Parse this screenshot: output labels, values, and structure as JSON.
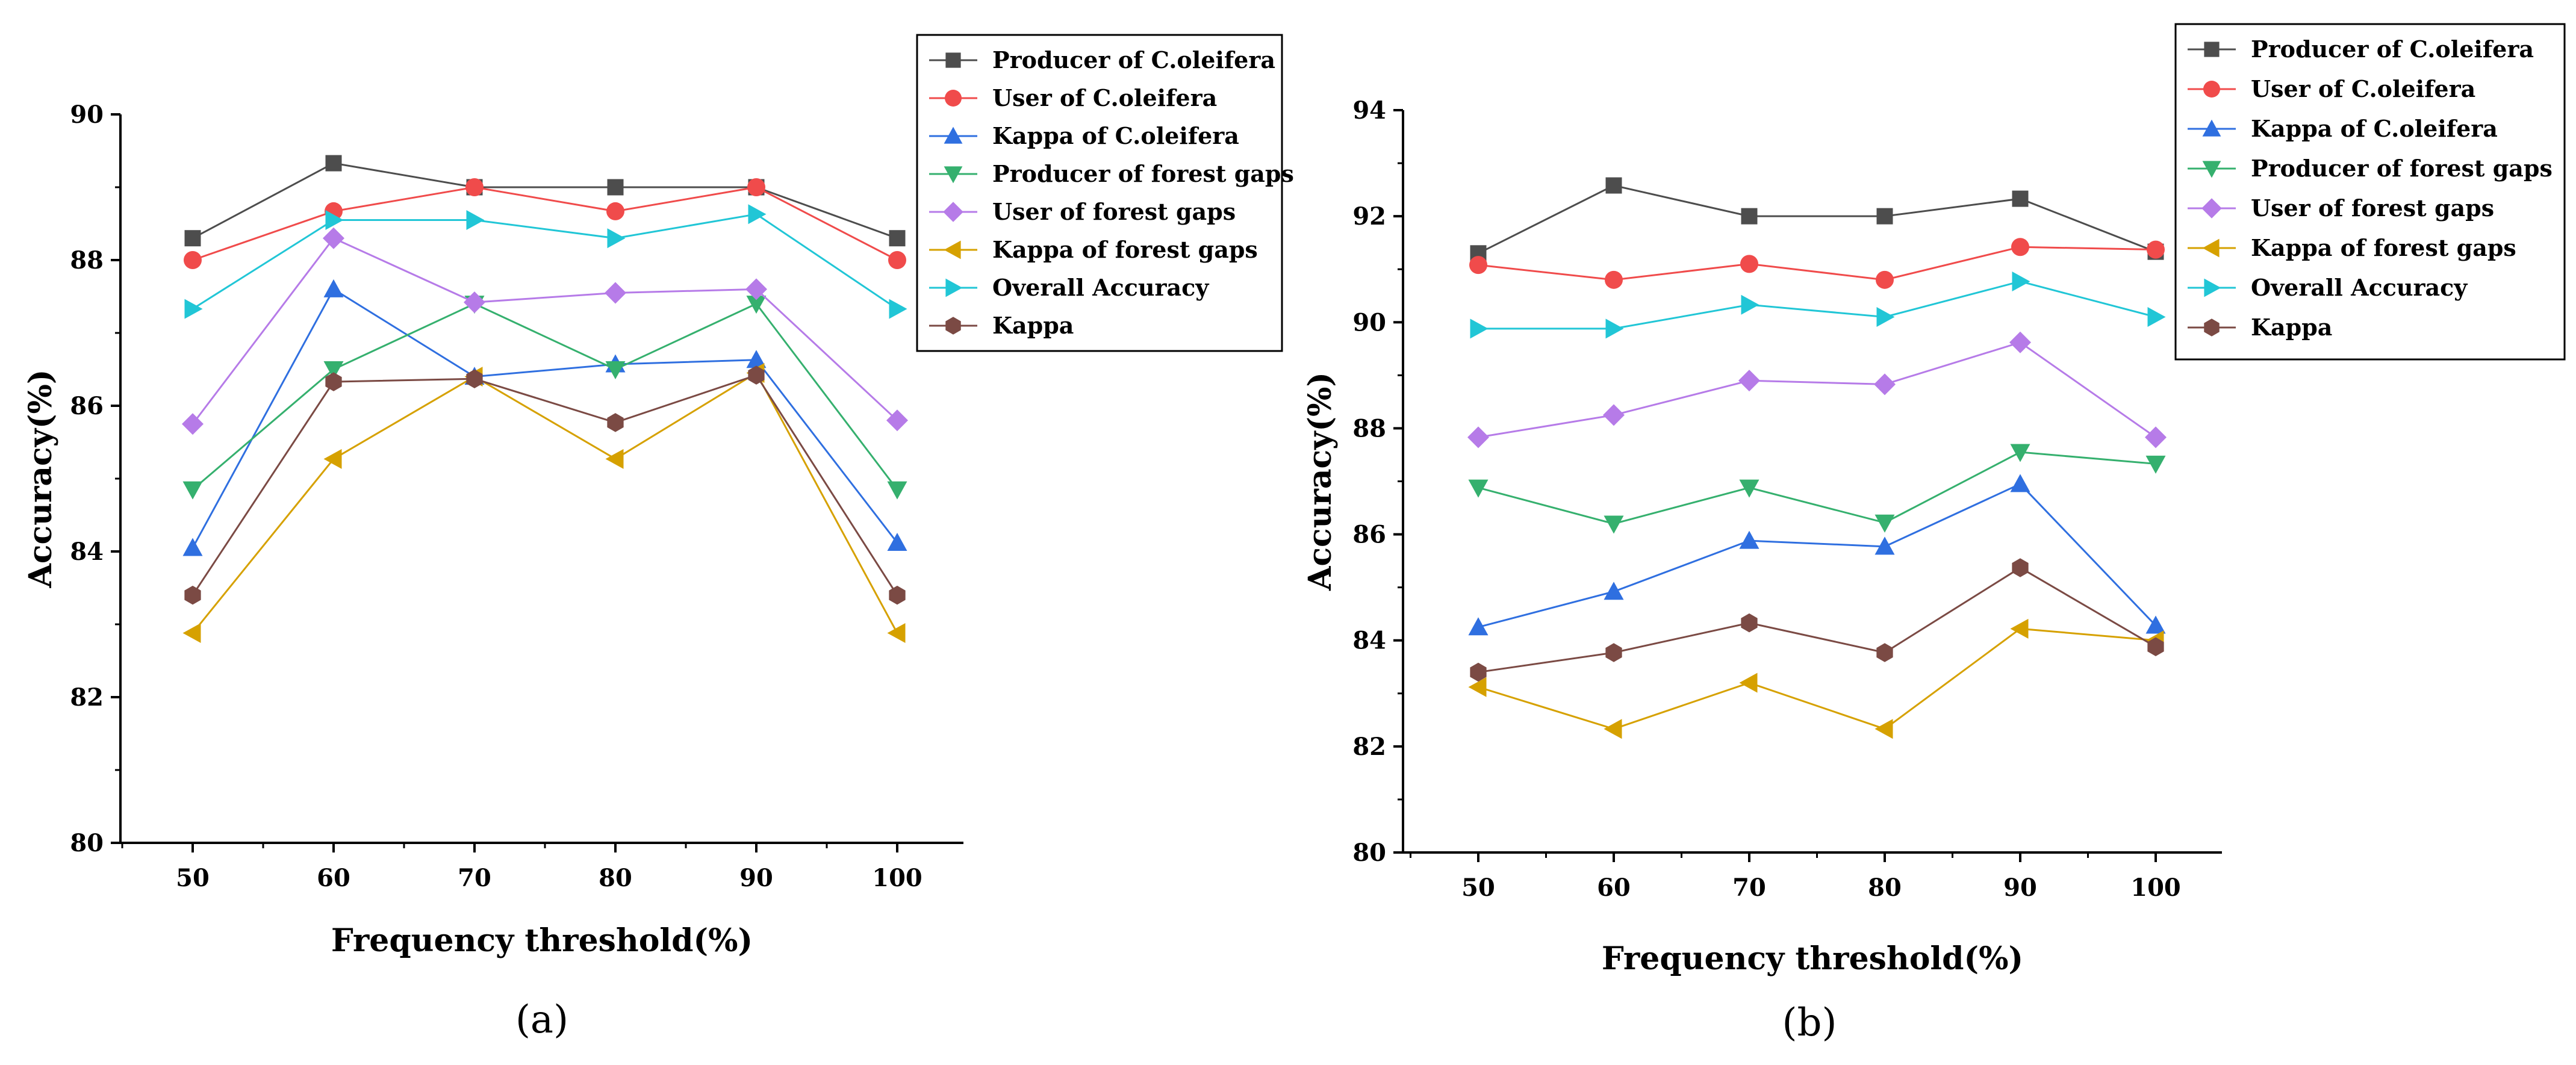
{
  "chart_data": [
    {
      "type": "line",
      "panel_label": "(a)",
      "xlabel": "Frequency threshold(%)",
      "ylabel": "Accuracy(%)",
      "x": [
        50,
        60,
        70,
        80,
        90,
        100
      ],
      "x_ticks": [
        "50",
        "60",
        "70",
        "80",
        "90",
        "100"
      ],
      "ylim": [
        80,
        90
      ],
      "y_ticks": [
        "80",
        "82",
        "84",
        "86",
        "88",
        "90"
      ],
      "grid": false,
      "legend_position": "top-right",
      "series": [
        {
          "name": "Producer of C.oleifera",
          "color": "#4d4d4d",
          "marker": "square",
          "values": [
            88.3,
            89.33,
            89.0,
            89.0,
            89.0,
            88.3
          ]
        },
        {
          "name": "User of C.oleifera",
          "color": "#f04b4b",
          "marker": "circle",
          "values": [
            88.0,
            88.67,
            89.0,
            88.67,
            89.0,
            88.0
          ]
        },
        {
          "name": "Kappa of C.oleifera",
          "color": "#2f6fe0",
          "marker": "triangle-up",
          "values": [
            84.05,
            87.6,
            86.4,
            86.57,
            86.63,
            84.12
          ]
        },
        {
          "name": "Producer of forest gaps",
          "color": "#35b06e",
          "marker": "triangle-down",
          "values": [
            84.85,
            86.5,
            87.4,
            86.5,
            87.4,
            84.85
          ]
        },
        {
          "name": "User of forest gaps",
          "color": "#b67be8",
          "marker": "diamond",
          "values": [
            85.75,
            88.3,
            87.42,
            87.55,
            87.6,
            85.8
          ]
        },
        {
          "name": "Kappa of forest gaps",
          "color": "#d6a100",
          "marker": "triangle-left",
          "values": [
            82.88,
            85.27,
            86.4,
            85.27,
            86.45,
            82.88
          ]
        },
        {
          "name": "Overall Accuracy",
          "color": "#21c6d6",
          "marker": "triangle-right",
          "values": [
            87.33,
            88.55,
            88.55,
            88.3,
            88.63,
            87.33
          ]
        },
        {
          "name": "Kappa",
          "color": "#7b4a44",
          "marker": "hexagon",
          "values": [
            83.4,
            86.33,
            86.37,
            85.77,
            86.42,
            83.4
          ]
        }
      ]
    },
    {
      "type": "line",
      "panel_label": "(b)",
      "xlabel": "Frequency threshold(%)",
      "ylabel": "Accuracy(%)",
      "x": [
        50,
        60,
        70,
        80,
        90,
        100
      ],
      "x_ticks": [
        "50",
        "60",
        "70",
        "80",
        "90",
        "100"
      ],
      "ylim": [
        80,
        94
      ],
      "y_ticks": [
        "80",
        "82",
        "84",
        "86",
        "88",
        "90",
        "92",
        "94"
      ],
      "grid": false,
      "legend_position": "top-right",
      "series": [
        {
          "name": "Producer of C.oleifera",
          "color": "#4d4d4d",
          "marker": "square",
          "values": [
            91.3,
            92.58,
            92.0,
            92.0,
            92.33,
            91.33
          ]
        },
        {
          "name": "User of C.oleifera",
          "color": "#f04b4b",
          "marker": "circle",
          "values": [
            91.08,
            90.8,
            91.1,
            90.8,
            91.42,
            91.37
          ]
        },
        {
          "name": "Kappa of C.oleifera",
          "color": "#2f6fe0",
          "marker": "triangle-up",
          "values": [
            84.25,
            84.92,
            85.88,
            85.77,
            86.95,
            84.28
          ]
        },
        {
          "name": "Producer of forest gaps",
          "color": "#35b06e",
          "marker": "triangle-down",
          "values": [
            86.88,
            86.2,
            86.88,
            86.22,
            87.55,
            87.33
          ]
        },
        {
          "name": "User of forest gaps",
          "color": "#b67be8",
          "marker": "diamond",
          "values": [
            87.83,
            88.25,
            88.9,
            88.83,
            89.62,
            87.83
          ]
        },
        {
          "name": "Kappa of forest gaps",
          "color": "#d6a100",
          "marker": "triangle-left",
          "values": [
            83.12,
            82.33,
            83.2,
            82.33,
            84.22,
            84.0
          ]
        },
        {
          "name": "Overall Accuracy",
          "color": "#21c6d6",
          "marker": "triangle-right",
          "values": [
            89.88,
            89.88,
            90.33,
            90.1,
            90.77,
            90.1
          ]
        },
        {
          "name": "Kappa",
          "color": "#7b4a44",
          "marker": "hexagon",
          "values": [
            83.4,
            83.77,
            84.33,
            83.77,
            85.37,
            83.88
          ]
        }
      ]
    }
  ]
}
